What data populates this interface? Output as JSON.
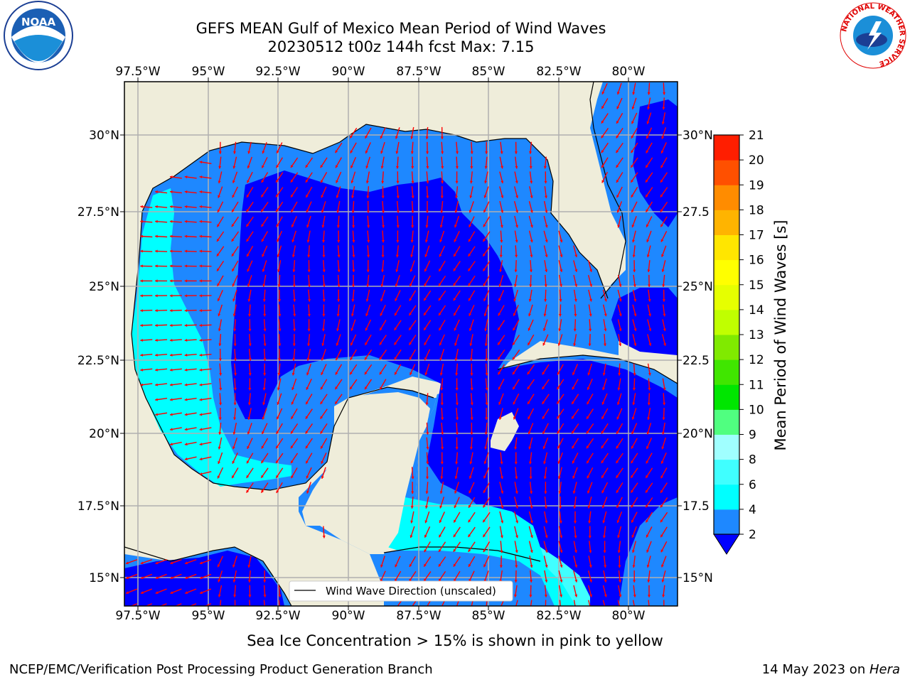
{
  "header": {
    "title_line1": "GEFS MEAN Gulf of Mexico Mean Period of Wind Waves",
    "title_line2": "20230512 t00z 144h fcst   Max: 7.15"
  },
  "logos": {
    "noaa_text": "NOAA",
    "nws_ring_text": "NATIONAL WEATHER SERVICE"
  },
  "map": {
    "lon_ticks": [
      "97.5°W",
      "95°W",
      "92.5°W",
      "90°W",
      "87.5°W",
      "85°W",
      "82.5°W",
      "80°W"
    ],
    "lat_ticks_left": [
      "30°N",
      "27.5°N",
      "25°N",
      "22.5°N",
      "20°N",
      "17.5°N",
      "15°N"
    ],
    "lat_ticks_right": [
      "30°N",
      "27.5",
      "25°N",
      "22.5",
      "20°N",
      "17.5",
      "15°N"
    ],
    "legend_label": "Wind Wave Direction (unscaled)",
    "colors": {
      "land": "#efedda",
      "ocean_2_4": "#1e88ff",
      "ocean_lt2": "#0000ff",
      "ocean_4_6": "#00ffff",
      "ocean_6_8": "#40ffff",
      "arrow": "#ff0000",
      "grid": "#b0b0b0"
    }
  },
  "colorbar": {
    "label": "Mean Period of Wind Waves [s]",
    "levels": [
      "2",
      "4",
      "6",
      "8",
      "9",
      "10",
      "11",
      "12",
      "13",
      "14",
      "15",
      "16",
      "17",
      "18",
      "19",
      "20",
      "21"
    ],
    "colors": [
      "#1e88ff",
      "#00ffff",
      "#40ffff",
      "#a0ffff",
      "#50ff80",
      "#00e600",
      "#40e600",
      "#80ea00",
      "#c0ff00",
      "#e6ff00",
      "#ffff00",
      "#ffe600",
      "#ffb400",
      "#ff8c00",
      "#ff5000",
      "#ff1e00"
    ],
    "under_color": "#0000ff"
  },
  "caption": "Sea Ice Concentration > 15% is shown in pink to yellow",
  "footer": {
    "left": "NCEP/EMC/Verification Post Processing Product Generation Branch",
    "right_date": "14 May 2023 on ",
    "right_host": "Hera"
  }
}
